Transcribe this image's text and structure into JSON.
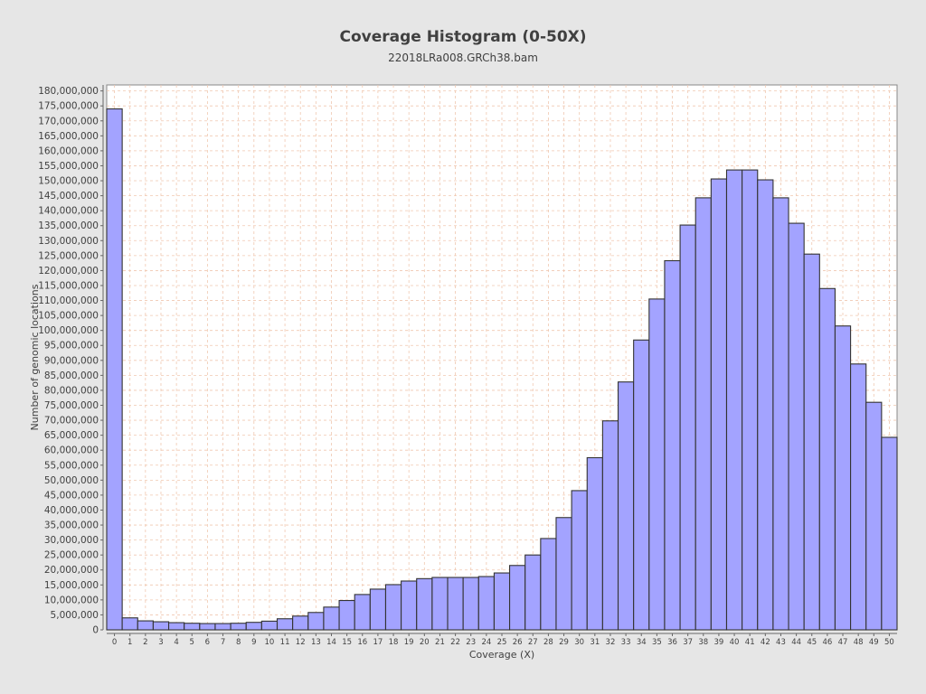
{
  "chart_data": {
    "type": "bar",
    "title": "Coverage Histogram (0-50X)",
    "subtitle": "22018LRa008.GRCh38.bam",
    "xlabel": "Coverage (X)",
    "ylabel": "Number of genomic locations",
    "ylim": [
      0,
      182000000
    ],
    "ytick_step": 5000000,
    "grid": true,
    "legend": "none",
    "colors": {
      "background": "#e6e6e6",
      "plot_background": "#ffffff",
      "bar_fill": "#a3a3ff",
      "bar_stroke": "#333333",
      "grid": "#f0c8b0",
      "text": "#404040"
    },
    "categories": [
      "0",
      "1",
      "2",
      "3",
      "4",
      "5",
      "6",
      "7",
      "8",
      "9",
      "10",
      "11",
      "12",
      "13",
      "14",
      "15",
      "16",
      "17",
      "18",
      "19",
      "20",
      "21",
      "22",
      "23",
      "24",
      "25",
      "26",
      "27",
      "28",
      "29",
      "30",
      "31",
      "32",
      "33",
      "34",
      "35",
      "36",
      "37",
      "38",
      "39",
      "40",
      "41",
      "42",
      "43",
      "44",
      "45",
      "46",
      "47",
      "48",
      "49",
      "50"
    ],
    "values": [
      174000000,
      4000000,
      3000000,
      2700000,
      2400000,
      2200000,
      2100000,
      2100000,
      2200000,
      2500000,
      2900000,
      3700000,
      4600000,
      5800000,
      7600000,
      9800000,
      11800000,
      13600000,
      15100000,
      16300000,
      17100000,
      17500000,
      17500000,
      17500000,
      17800000,
      19000000,
      21500000,
      25000000,
      30500000,
      37500000,
      46500000,
      57500000,
      69800000,
      82800000,
      96800000,
      110500000,
      123300000,
      135200000,
      144300000,
      150600000,
      153600000,
      153600000,
      150300000,
      144300000,
      135800000,
      125500000,
      114000000,
      101500000,
      88800000,
      76000000,
      64300000
    ]
  }
}
